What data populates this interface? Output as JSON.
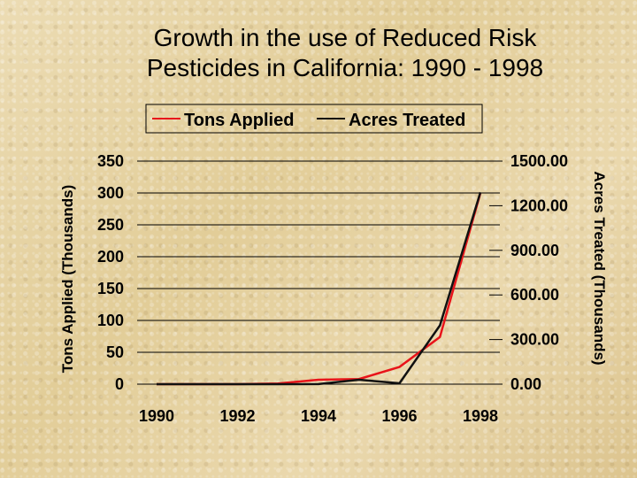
{
  "title_line1": "Growth in the use of Reduced Risk",
  "title_line2": "Pesticides in California:  1990 - 1998",
  "colors": {
    "tons": "#e8141a",
    "acres": "#111111",
    "grid": "#000000"
  },
  "chart_data": {
    "type": "line",
    "xlabel": "",
    "ylabel": "Tons Applied (Thousands)",
    "y2label": "Acres Treated (Thousands)",
    "x_tick_labels": [
      "1990",
      "1992",
      "1994",
      "1996",
      "1998"
    ],
    "y_tick_labels": [
      "0",
      "50",
      "100",
      "150",
      "200",
      "250",
      "300",
      "350"
    ],
    "y2_tick_labels": [
      "0.00",
      "300.00",
      "600.00",
      "900.00",
      "1200.00",
      "1500.00"
    ],
    "ylim": [
      0,
      350
    ],
    "y2lim": [
      0,
      1500
    ],
    "x": [
      1990,
      1991,
      1992,
      1993,
      1994,
      1995,
      1996,
      1997,
      1998
    ],
    "legend_position": "top",
    "grid": "horizontal",
    "series": [
      {
        "name": "Tons Applied",
        "axis": "left",
        "values": [
          0,
          0,
          0,
          1,
          7,
          8,
          27,
          74,
          300
        ]
      },
      {
        "name": "Acres Treated",
        "axis": "right",
        "values": [
          0,
          0,
          0,
          0,
          1,
          30,
          6,
          395,
          1290
        ]
      }
    ]
  }
}
